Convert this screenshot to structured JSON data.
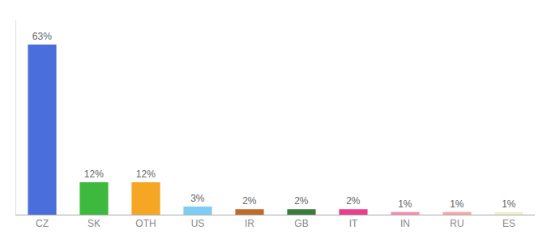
{
  "chart_data": {
    "type": "bar",
    "categories": [
      "CZ",
      "SK",
      "OTH",
      "US",
      "IR",
      "GB",
      "IT",
      "IN",
      "RU",
      "ES"
    ],
    "values": [
      63,
      12,
      12,
      3,
      2,
      2,
      2,
      1,
      1,
      1
    ],
    "value_labels": [
      "63%",
      "12%",
      "12%",
      "3%",
      "2%",
      "2%",
      "2%",
      "1%",
      "1%",
      "1%"
    ],
    "colors": [
      "#4a6fdc",
      "#3dba3d",
      "#f5a623",
      "#7ecef4",
      "#c0692a",
      "#3a7a3a",
      "#e83e8c",
      "#f48fb1",
      "#f4a9a8",
      "#f0f0c8"
    ],
    "ylim": [
      0,
      72
    ],
    "grid": false,
    "data_labels": true,
    "tick_labels": "x"
  }
}
